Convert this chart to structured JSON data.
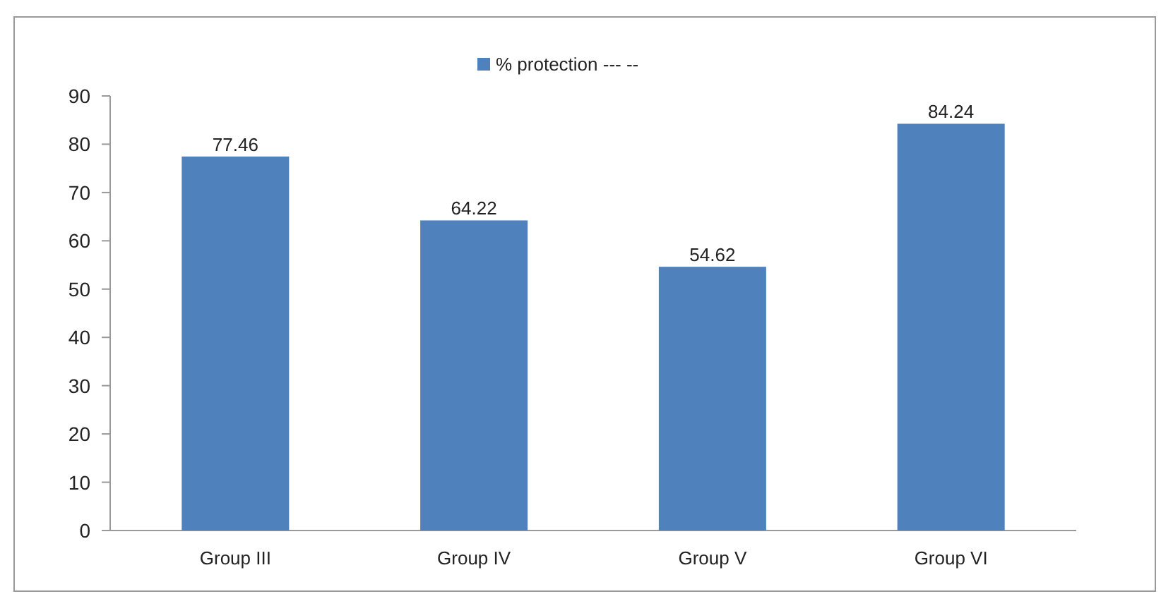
{
  "chart_data": {
    "type": "bar",
    "categories": [
      "Group III",
      "Group IV",
      "Group V",
      "Group VI"
    ],
    "series": [
      {
        "name": "% protection --- --",
        "color": "#4f81bd",
        "values": [
          77.46,
          64.22,
          54.62,
          84.24
        ]
      }
    ],
    "data_labels": true,
    "ylim": [
      0,
      90
    ],
    "yticks": [
      0,
      10,
      20,
      30,
      40,
      50,
      60,
      70,
      80,
      90
    ],
    "legend": "top",
    "grid": false
  }
}
